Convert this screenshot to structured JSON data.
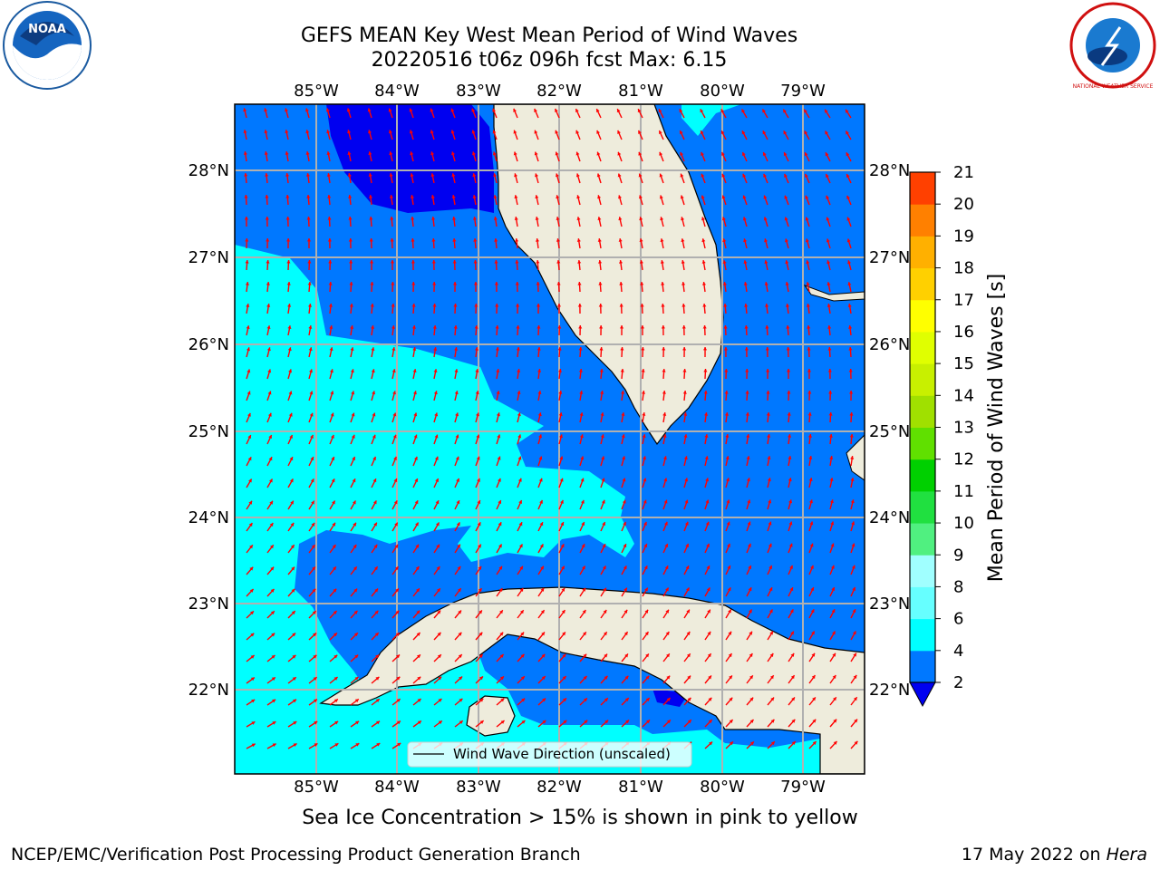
{
  "title": {
    "line1": "GEFS MEAN Key West Mean Period of Wind Waves",
    "line2": "20220516 t06z 096h fcst   Max: 6.15"
  },
  "map": {
    "lon_labels": [
      "85°W",
      "84°W",
      "83°W",
      "82°W",
      "81°W",
      "80°W",
      "79°W"
    ],
    "lat_labels": [
      "28°N",
      "27°N",
      "26°N",
      "25°N",
      "24°N",
      "23°N",
      "22°N"
    ],
    "legend_label": "Wind Wave Direction (unscaled)",
    "colors": {
      "land": "#eeecdc",
      "period_0_2": "#0000f0",
      "period_2_4": "#0078ff",
      "period_4_6": "#00ffff",
      "arrow": "#ff0000",
      "grid": "#b0b0b0"
    }
  },
  "colorbar": {
    "label": "Mean Period of Wind Waves [s]",
    "ticks": [
      "2",
      "4",
      "6",
      "8",
      "9",
      "10",
      "11",
      "12",
      "13",
      "14",
      "15",
      "16",
      "17",
      "18",
      "19",
      "20",
      "21"
    ],
    "colors": [
      "#0078ff",
      "#00ffff",
      "#66ffff",
      "#a0ffff",
      "#50f080",
      "#20e040",
      "#00d000",
      "#60e000",
      "#a0e000",
      "#c8f000",
      "#e0ff00",
      "#ffff00",
      "#ffd000",
      "#ffb000",
      "#ff8000",
      "#ff4000",
      "#ff0000"
    ],
    "under_color": "#0000f0"
  },
  "note": "Sea Ice Concentration > 15% is shown in pink to yellow",
  "footer": {
    "left": "NCEP/EMC/Verification Post Processing Product Generation Branch",
    "date": "17 May 2022 on ",
    "machine": "Hera"
  },
  "logos": {
    "noaa": "NOAA",
    "nws": "NATIONAL WEATHER SERVICE"
  }
}
